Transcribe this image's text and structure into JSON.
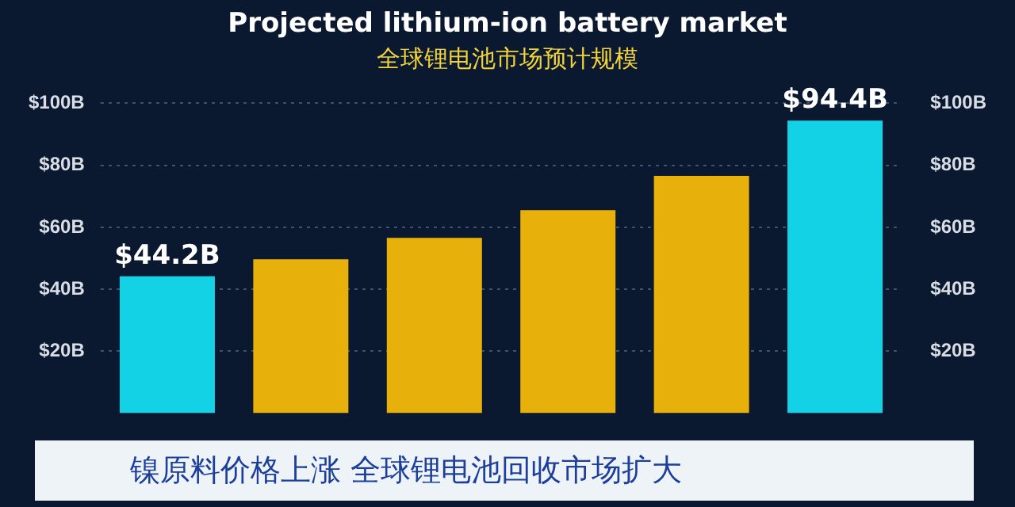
{
  "chart_data": {
    "type": "bar",
    "title": "Projected lithium-ion battery market",
    "subtitle": "全球锂电池市场预计规模",
    "categories": [
      null,
      null,
      null,
      null,
      null,
      null
    ],
    "values": [
      44.2,
      49.7,
      56.6,
      65.5,
      76.6,
      94.4
    ],
    "colors": [
      "#14d2e6",
      "#e8b00a",
      "#e8b00a",
      "#e8b00a",
      "#e8b00a",
      "#14d2e6"
    ],
    "value_labels": [
      "$44.2B",
      null,
      null,
      null,
      null,
      "$94.4B"
    ],
    "ylim": [
      0,
      100
    ],
    "yticks": [
      {
        "value": 20,
        "label": "$20B"
      },
      {
        "value": 40,
        "label": "$40B"
      },
      {
        "value": 60,
        "label": "$60B"
      },
      {
        "value": 80,
        "label": "$80B"
      },
      {
        "value": 100,
        "label": "$100B"
      }
    ],
    "y2lim": [
      0,
      100
    ],
    "y2ticks": [
      {
        "value": 20,
        "label": "$20B"
      },
      {
        "value": 40,
        "label": "$40B"
      },
      {
        "value": 60,
        "label": "$60B"
      },
      {
        "value": 80,
        "label": "$80B"
      },
      {
        "value": 100,
        "label": "$100B"
      }
    ],
    "grid": "y",
    "legend": false,
    "annotations": [
      "镍原料价格上涨 全球锂电池回收市场扩大"
    ]
  }
}
